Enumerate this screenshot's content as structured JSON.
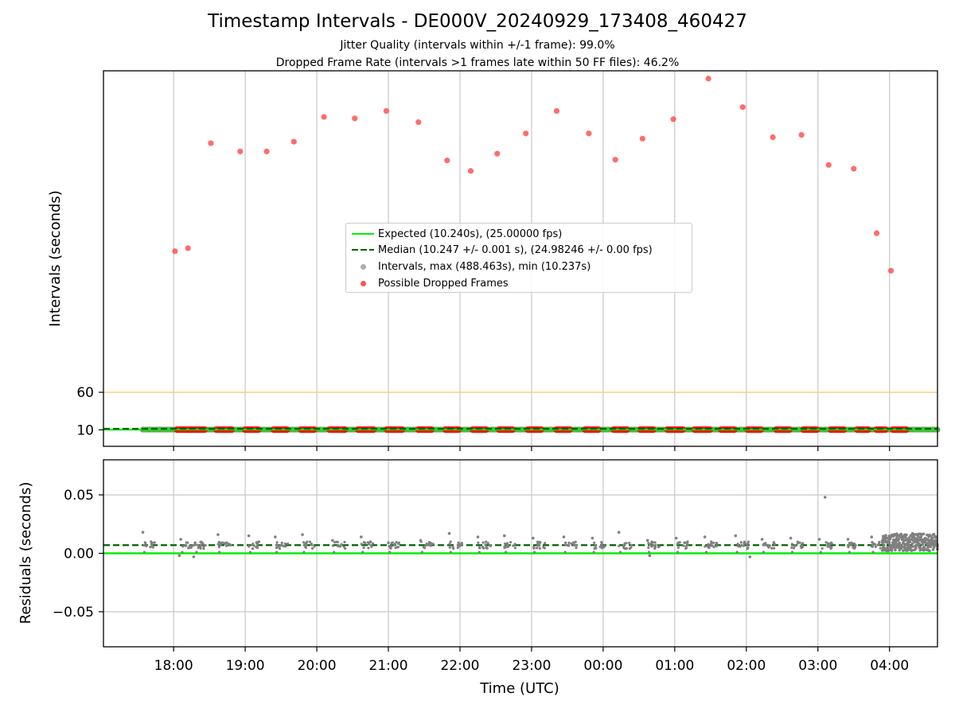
{
  "figure": {
    "title": "Timestamp Intervals - DE000V_20240929_173408_460427",
    "subtitle_line1": "Jitter Quality (intervals within +/-1 frame): 99.0%",
    "subtitle_line2": "Dropped Frame Rate (intervals >1 frames late within 50 FF files): 46.2%"
  },
  "legend": {
    "expected": "Expected (10.240s), (25.00000 fps)",
    "median": "Median (10.247 +/- 0.001 s), (24.98246 +/- 0.00 fps)",
    "intervals": "Intervals, max (488.463s), min (10.237s)",
    "dropped": "Possible Dropped Frames"
  },
  "colors": {
    "expected": "#00ee00",
    "median": "#006400",
    "intervals": "#808080",
    "dropped": "#ff0000",
    "threshold": "#f5d37a",
    "grid": "#cccccc"
  },
  "chart_data": [
    {
      "type": "scatter",
      "name": "intervals-panel",
      "ylabel": "Intervals (seconds)",
      "xlabel": "",
      "x_unit": "hours since 00:00 UTC (17.0 = 17:00 on day 1, 24.0 = 00:00 on day 2)",
      "xlim": [
        17.02,
        28.67
      ],
      "ylim": [
        -12,
        488.463
      ],
      "y_ticks": [
        10,
        60
      ],
      "x_ticks": [
        18,
        19,
        20,
        21,
        22,
        23,
        24,
        25,
        26,
        27,
        28
      ],
      "x_tick_labels": [
        "18:00",
        "19:00",
        "20:00",
        "21:00",
        "22:00",
        "23:00",
        "00:00",
        "01:00",
        "02:00",
        "03:00",
        "04:00"
      ],
      "grid": "vertical",
      "legend_position": "center",
      "expected_line": 10.24,
      "median_line": 10.247,
      "threshold_line": 60,
      "interval_band": {
        "x_start": 17.57,
        "x_end": 28.67,
        "value_min": 10.237,
        "value_max": 10.29
      },
      "dropped_frames": {
        "x": [
          18.02,
          18.2,
          18.52,
          18.93,
          19.3,
          19.68,
          20.1,
          20.53,
          20.97,
          21.42,
          21.82,
          22.15,
          22.52,
          22.92,
          23.35,
          23.8,
          24.17,
          24.55,
          24.98,
          25.47,
          25.95,
          26.37,
          26.77,
          27.15,
          27.5,
          27.82,
          28.02
        ],
        "y": [
          248,
          252,
          392,
          381,
          381,
          394,
          427,
          425,
          435,
          420,
          369,
          355,
          378,
          405,
          435,
          405,
          370,
          398,
          424,
          478,
          440,
          400,
          403,
          363,
          358,
          272,
          222
        ]
      },
      "dropped_band_segments": [
        [
          18.05,
          18.25
        ],
        [
          18.25,
          18.45
        ],
        [
          18.6,
          18.82
        ],
        [
          19.0,
          19.2
        ],
        [
          19.4,
          19.6
        ],
        [
          19.78,
          19.98
        ],
        [
          20.18,
          20.4
        ],
        [
          20.58,
          20.8
        ],
        [
          20.98,
          21.2
        ],
        [
          21.42,
          21.62
        ],
        [
          21.8,
          22.0
        ],
        [
          22.18,
          22.38
        ],
        [
          22.55,
          22.75
        ],
        [
          22.95,
          23.15
        ],
        [
          23.35,
          23.55
        ],
        [
          23.75,
          23.95
        ],
        [
          24.15,
          24.35
        ],
        [
          24.52,
          24.72
        ],
        [
          24.9,
          25.12
        ],
        [
          25.28,
          25.5
        ],
        [
          25.65,
          25.85
        ],
        [
          26.02,
          26.22
        ],
        [
          26.42,
          26.62
        ],
        [
          26.8,
          27.0
        ],
        [
          27.18,
          27.38
        ],
        [
          27.55,
          27.72
        ],
        [
          27.82,
          27.95
        ],
        [
          28.05,
          28.25
        ]
      ]
    },
    {
      "type": "scatter",
      "name": "residuals-panel",
      "xlabel": "Time (UTC)",
      "ylabel": "Residuals (seconds)",
      "xlim": [
        17.02,
        28.67
      ],
      "ylim": [
        -0.08,
        0.08
      ],
      "y_ticks": [
        0.05,
        0.0,
        -0.05
      ],
      "y_tick_labels": [
        "0.05",
        "0.00",
        "−0.05"
      ],
      "x_ticks": [
        18,
        19,
        20,
        21,
        22,
        23,
        24,
        25,
        26,
        27,
        28
      ],
      "x_tick_labels": [
        "18:00",
        "19:00",
        "20:00",
        "21:00",
        "22:00",
        "23:00",
        "00:00",
        "01:00",
        "02:00",
        "03:00",
        "04:00"
      ],
      "grid": "both",
      "expected_line": 0.0,
      "median_line": 0.007,
      "cluster_x": [
        17.57,
        18.1,
        18.3,
        18.62,
        19.05,
        19.42,
        19.8,
        20.22,
        20.62,
        21.0,
        21.45,
        21.85,
        22.25,
        22.62,
        23.02,
        23.45,
        23.85,
        24.22,
        24.62,
        25.02,
        25.42,
        25.85,
        26.22,
        26.62,
        27.02,
        27.42,
        27.75
      ],
      "cluster_peaks": [
        0.018,
        0.012,
        0.009,
        0.016,
        0.015,
        0.014,
        0.016,
        0.011,
        0.014,
        0.009,
        0.011,
        0.017,
        0.014,
        0.015,
        0.013,
        0.014,
        0.013,
        0.018,
        0.011,
        0.013,
        0.014,
        0.015,
        0.012,
        0.013,
        0.012,
        0.012,
        0.014
      ],
      "dense_region": {
        "x_start": 27.9,
        "x_end": 28.67,
        "y_min": 0.002,
        "y_max": 0.017
      },
      "outliers": {
        "x": [
          27.1,
          18.28,
          26.05,
          18.08,
          24.65
        ],
        "y": [
          0.048,
          -0.003,
          -0.003,
          -0.002,
          -0.002
        ]
      }
    }
  ]
}
